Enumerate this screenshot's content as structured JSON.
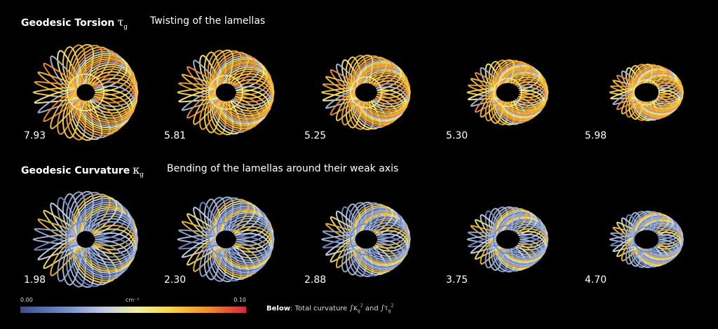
{
  "rows": [
    {
      "title": "Geodesic Torsion",
      "symbol": "τ",
      "subscript": "g",
      "description": "Twisting of the lamellas",
      "values": [
        "7.93",
        "5.81",
        "5.25",
        "5.30",
        "5.98"
      ],
      "palette": [
        "#e8a03a",
        "#f4d14e",
        "#f7ea8a",
        "#a7b8d8",
        "#ef8a3a",
        "#f2c044"
      ]
    },
    {
      "title": "Geodesic Curvature",
      "symbol": "κ",
      "subscript": "g",
      "description": "Bending of the lamellas around their weak axis",
      "values": [
        "1.98",
        "2.30",
        "2.88",
        "3.75",
        "4.70"
      ],
      "palette": [
        "#8fa3d0",
        "#a9b9dc",
        "#6f86bf",
        "#c9d2e6",
        "#f0df6a",
        "#e9b43c"
      ]
    }
  ],
  "legend": {
    "min": "0.00",
    "unit": "cm⁻¹",
    "max": "0.10"
  },
  "caption": {
    "bold": "Below",
    "text": ": Total curvature",
    "and": "and"
  }
}
